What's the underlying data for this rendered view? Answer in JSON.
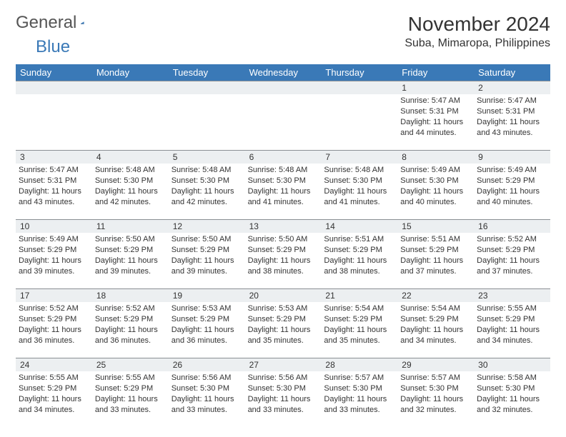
{
  "brand": {
    "part1": "General",
    "part2": "Blue"
  },
  "title": "November 2024",
  "location": "Suba, Mimaropa, Philippines",
  "colors": {
    "header_bg": "#3a79b7",
    "header_text": "#ffffff",
    "daynum_bg": "#eceff1",
    "daynum_border": "#8a8f94",
    "text": "#333333",
    "page_bg": "#ffffff"
  },
  "layout": {
    "columns": 7,
    "weeks": 5,
    "cell_fontsize": 11,
    "header_fontsize": 13,
    "title_fontsize": 28,
    "location_fontsize": 16
  },
  "weekdays": [
    "Sunday",
    "Monday",
    "Tuesday",
    "Wednesday",
    "Thursday",
    "Friday",
    "Saturday"
  ],
  "labels": {
    "sunrise": "Sunrise:",
    "sunset": "Sunset:",
    "daylight": "Daylight:"
  },
  "weeks": [
    [
      {
        "n": "",
        "sr": "",
        "ss": "",
        "dl": ""
      },
      {
        "n": "",
        "sr": "",
        "ss": "",
        "dl": ""
      },
      {
        "n": "",
        "sr": "",
        "ss": "",
        "dl": ""
      },
      {
        "n": "",
        "sr": "",
        "ss": "",
        "dl": ""
      },
      {
        "n": "",
        "sr": "",
        "ss": "",
        "dl": ""
      },
      {
        "n": "1",
        "sr": "5:47 AM",
        "ss": "5:31 PM",
        "dl": "11 hours and 44 minutes."
      },
      {
        "n": "2",
        "sr": "5:47 AM",
        "ss": "5:31 PM",
        "dl": "11 hours and 43 minutes."
      }
    ],
    [
      {
        "n": "3",
        "sr": "5:47 AM",
        "ss": "5:31 PM",
        "dl": "11 hours and 43 minutes."
      },
      {
        "n": "4",
        "sr": "5:48 AM",
        "ss": "5:30 PM",
        "dl": "11 hours and 42 minutes."
      },
      {
        "n": "5",
        "sr": "5:48 AM",
        "ss": "5:30 PM",
        "dl": "11 hours and 42 minutes."
      },
      {
        "n": "6",
        "sr": "5:48 AM",
        "ss": "5:30 PM",
        "dl": "11 hours and 41 minutes."
      },
      {
        "n": "7",
        "sr": "5:48 AM",
        "ss": "5:30 PM",
        "dl": "11 hours and 41 minutes."
      },
      {
        "n": "8",
        "sr": "5:49 AM",
        "ss": "5:30 PM",
        "dl": "11 hours and 40 minutes."
      },
      {
        "n": "9",
        "sr": "5:49 AM",
        "ss": "5:29 PM",
        "dl": "11 hours and 40 minutes."
      }
    ],
    [
      {
        "n": "10",
        "sr": "5:49 AM",
        "ss": "5:29 PM",
        "dl": "11 hours and 39 minutes."
      },
      {
        "n": "11",
        "sr": "5:50 AM",
        "ss": "5:29 PM",
        "dl": "11 hours and 39 minutes."
      },
      {
        "n": "12",
        "sr": "5:50 AM",
        "ss": "5:29 PM",
        "dl": "11 hours and 39 minutes."
      },
      {
        "n": "13",
        "sr": "5:50 AM",
        "ss": "5:29 PM",
        "dl": "11 hours and 38 minutes."
      },
      {
        "n": "14",
        "sr": "5:51 AM",
        "ss": "5:29 PM",
        "dl": "11 hours and 38 minutes."
      },
      {
        "n": "15",
        "sr": "5:51 AM",
        "ss": "5:29 PM",
        "dl": "11 hours and 37 minutes."
      },
      {
        "n": "16",
        "sr": "5:52 AM",
        "ss": "5:29 PM",
        "dl": "11 hours and 37 minutes."
      }
    ],
    [
      {
        "n": "17",
        "sr": "5:52 AM",
        "ss": "5:29 PM",
        "dl": "11 hours and 36 minutes."
      },
      {
        "n": "18",
        "sr": "5:52 AM",
        "ss": "5:29 PM",
        "dl": "11 hours and 36 minutes."
      },
      {
        "n": "19",
        "sr": "5:53 AM",
        "ss": "5:29 PM",
        "dl": "11 hours and 36 minutes."
      },
      {
        "n": "20",
        "sr": "5:53 AM",
        "ss": "5:29 PM",
        "dl": "11 hours and 35 minutes."
      },
      {
        "n": "21",
        "sr": "5:54 AM",
        "ss": "5:29 PM",
        "dl": "11 hours and 35 minutes."
      },
      {
        "n": "22",
        "sr": "5:54 AM",
        "ss": "5:29 PM",
        "dl": "11 hours and 34 minutes."
      },
      {
        "n": "23",
        "sr": "5:55 AM",
        "ss": "5:29 PM",
        "dl": "11 hours and 34 minutes."
      }
    ],
    [
      {
        "n": "24",
        "sr": "5:55 AM",
        "ss": "5:29 PM",
        "dl": "11 hours and 34 minutes."
      },
      {
        "n": "25",
        "sr": "5:55 AM",
        "ss": "5:29 PM",
        "dl": "11 hours and 33 minutes."
      },
      {
        "n": "26",
        "sr": "5:56 AM",
        "ss": "5:30 PM",
        "dl": "11 hours and 33 minutes."
      },
      {
        "n": "27",
        "sr": "5:56 AM",
        "ss": "5:30 PM",
        "dl": "11 hours and 33 minutes."
      },
      {
        "n": "28",
        "sr": "5:57 AM",
        "ss": "5:30 PM",
        "dl": "11 hours and 33 minutes."
      },
      {
        "n": "29",
        "sr": "5:57 AM",
        "ss": "5:30 PM",
        "dl": "11 hours and 32 minutes."
      },
      {
        "n": "30",
        "sr": "5:58 AM",
        "ss": "5:30 PM",
        "dl": "11 hours and 32 minutes."
      }
    ]
  ]
}
